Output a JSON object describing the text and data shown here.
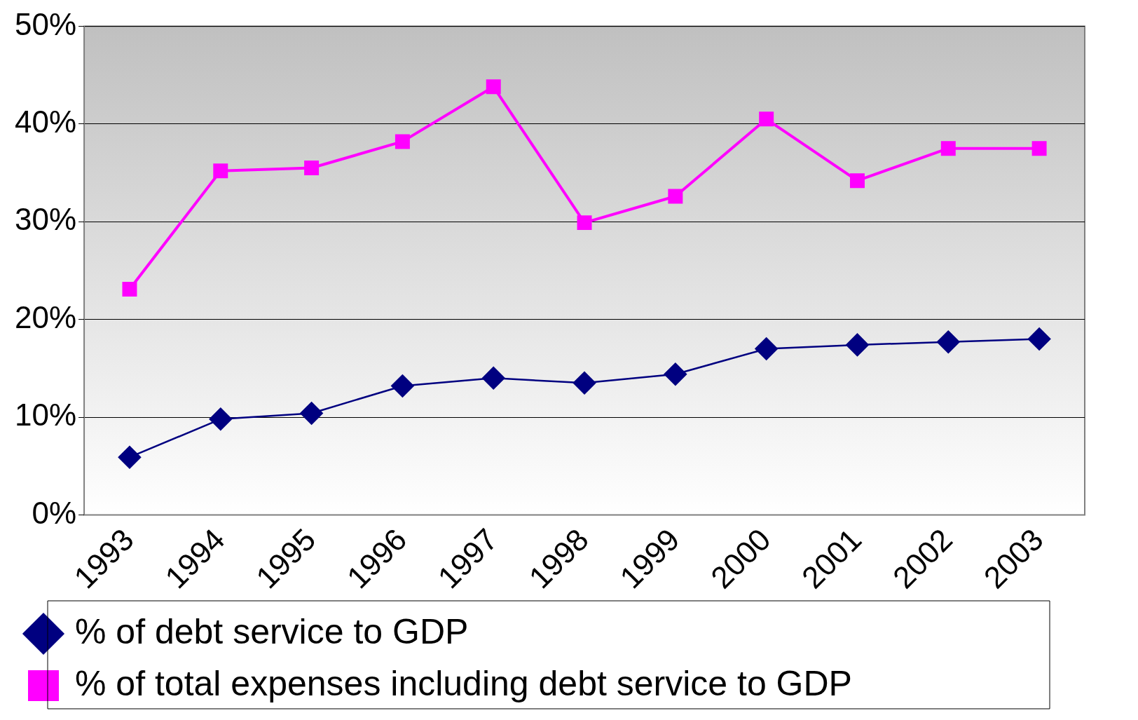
{
  "chart_data": {
    "type": "line",
    "categories": [
      "1993",
      "1994",
      "1995",
      "1996",
      "1997",
      "1998",
      "1999",
      "2000",
      "2001",
      "2002",
      "2003"
    ],
    "series": [
      {
        "name": "% of debt service to GDP",
        "color": "#000080",
        "marker": "diamond",
        "values": [
          5.9,
          9.8,
          10.4,
          13.2,
          14.0,
          13.5,
          14.4,
          17.0,
          17.4,
          17.7,
          18.0
        ]
      },
      {
        "name": "% of total expenses including debt service to GDP",
        "color": "#ff00ff",
        "marker": "square",
        "values": [
          23.1,
          35.2,
          35.5,
          38.2,
          43.8,
          29.9,
          32.6,
          40.5,
          34.2,
          37.5,
          37.5
        ]
      }
    ],
    "ylim": [
      0,
      50
    ],
    "yticks": [
      {
        "value": 0,
        "label": "0%"
      },
      {
        "value": 10,
        "label": "10%"
      },
      {
        "value": 20,
        "label": "20%"
      },
      {
        "value": 30,
        "label": "30%"
      },
      {
        "value": 40,
        "label": "40%"
      },
      {
        "value": 50,
        "label": "50%"
      }
    ],
    "grid": "y",
    "legend": "bottom",
    "line_style": "solid"
  }
}
